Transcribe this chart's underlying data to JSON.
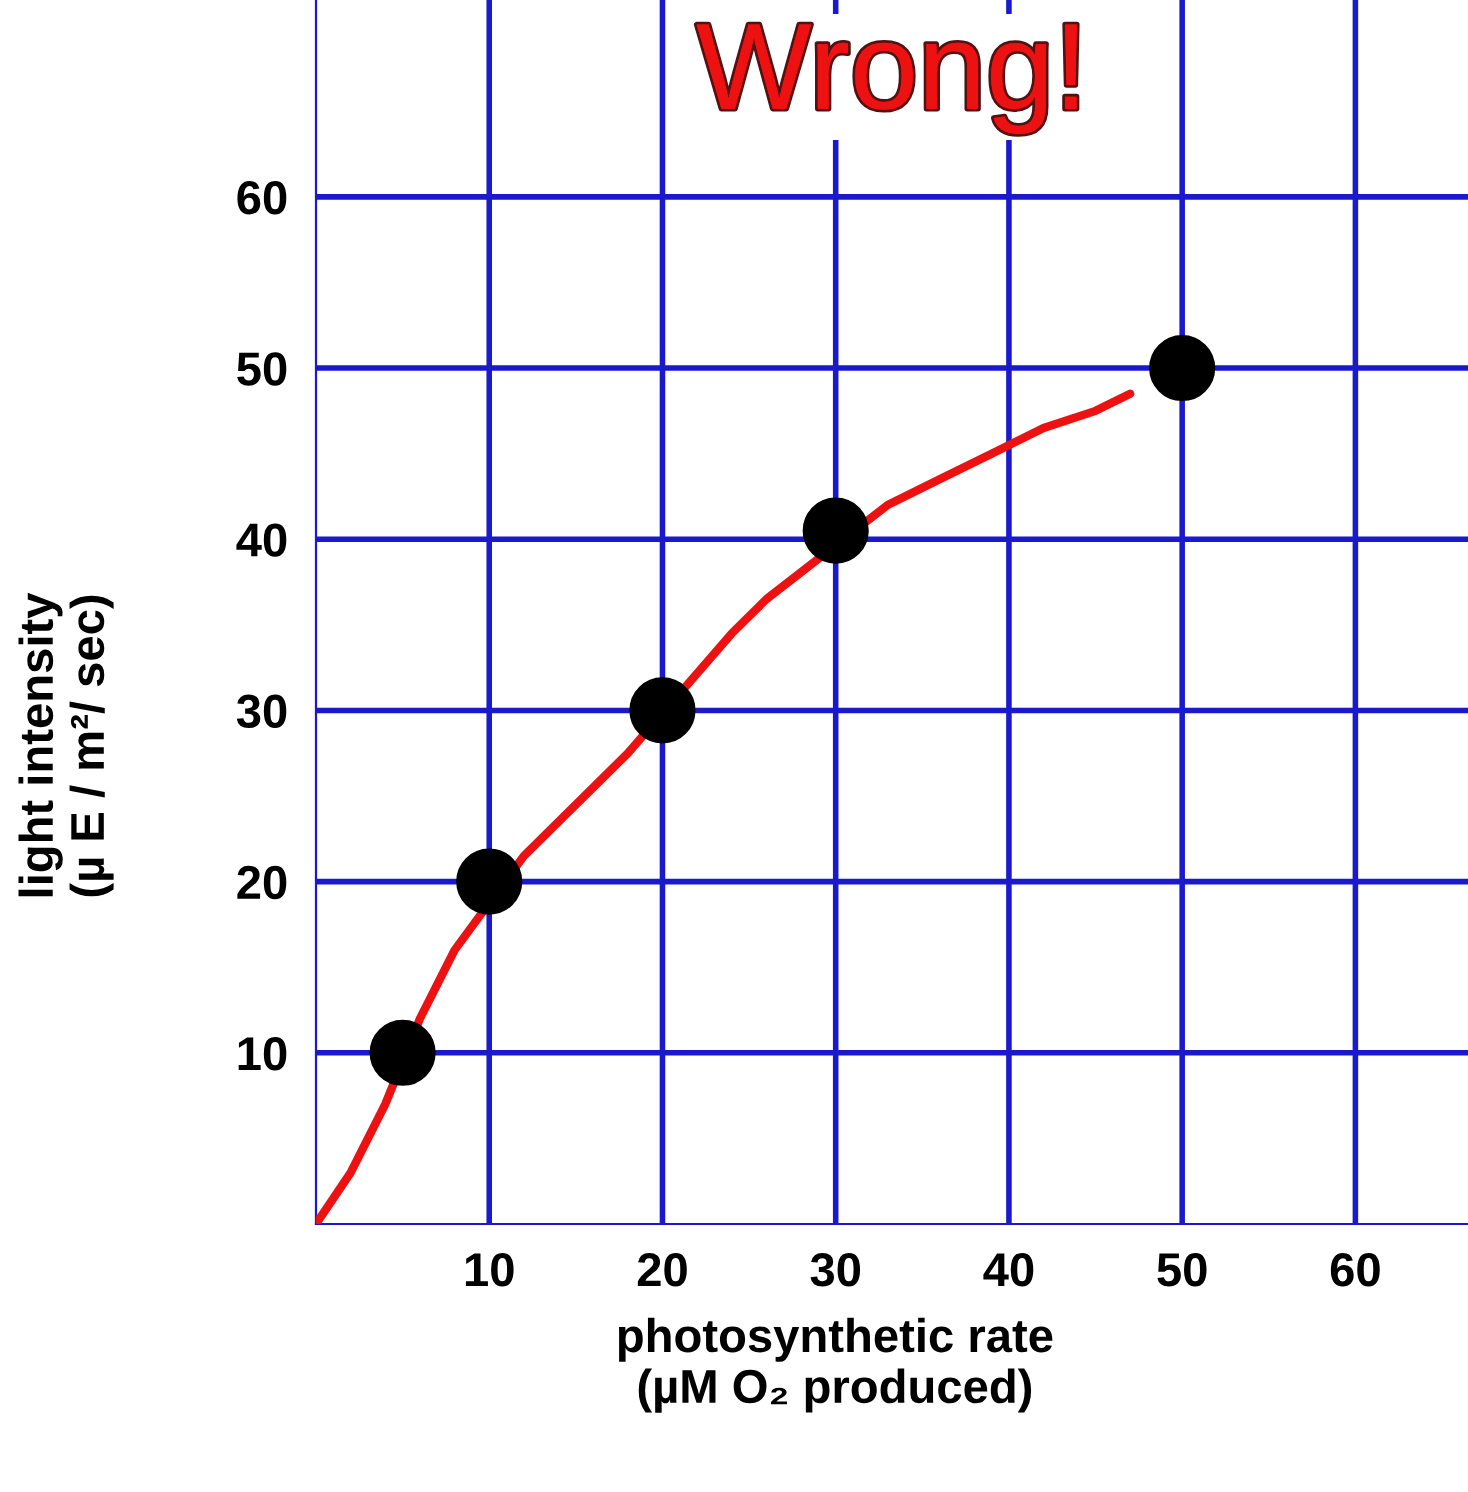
{
  "chart_data": {
    "type": "scatter",
    "xlabel": "photosynthetic rate\n(µM O₂ produced)",
    "ylabel": "light intensity\n(µ E / m²/ sec)",
    "annotations": [
      "Wrong!"
    ],
    "series": [
      {
        "type": "line",
        "color": "#ee1111",
        "x": [
          0,
          1,
          2,
          3,
          4,
          6,
          7,
          8,
          12,
          14,
          16,
          18,
          24,
          26,
          33,
          36,
          39,
          42,
          45,
          47
        ],
        "values": [
          0,
          1.5,
          3,
          5,
          7,
          12,
          14,
          16,
          21.5,
          23.5,
          25.5,
          27.5,
          34.5,
          36.5,
          42,
          43.5,
          45,
          46.5,
          47.5,
          48.5
        ]
      },
      {
        "color": "#000000",
        "marker": "circle",
        "x": [
          5,
          10,
          20,
          30,
          50
        ],
        "values": [
          10,
          20,
          30,
          40.5,
          50
        ]
      }
    ],
    "xlim": [
      0,
      66.5
    ],
    "ylim": [
      0,
      71.5
    ],
    "xticks": [
      10,
      20,
      30,
      40,
      50,
      60
    ],
    "yticks": [
      10,
      20,
      30,
      40,
      50,
      60
    ],
    "grid": true
  }
}
